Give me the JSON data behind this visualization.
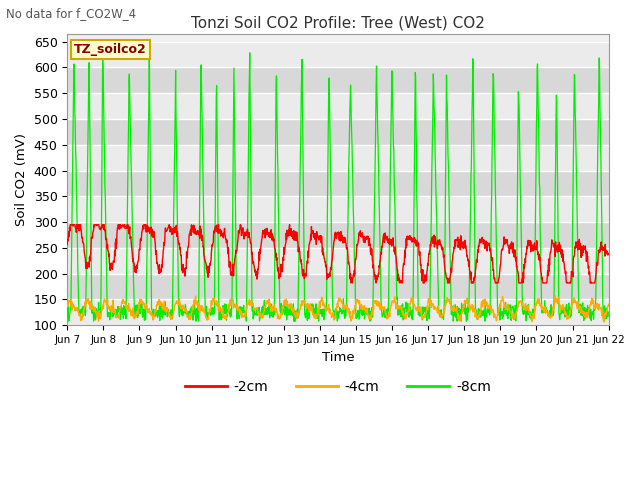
{
  "title": "Tonzi Soil CO2 Profile: Tree (West) CO2",
  "top_left_text": "No data for f_CO2W_4",
  "ylabel": "Soil CO2 (mV)",
  "xlabel": "Time",
  "legend_label": "TZ_soilco2",
  "series_labels": [
    "-2cm",
    "-4cm",
    "-8cm"
  ],
  "series_colors": [
    "#ff0000",
    "#ffaa00",
    "#00ee00"
  ],
  "ylim": [
    100,
    665
  ],
  "yticks": [
    100,
    150,
    200,
    250,
    300,
    350,
    400,
    450,
    500,
    550,
    600,
    650
  ],
  "x_tick_labels": [
    "Jun 7",
    "Jun 8",
    "Jun 9",
    "Jun 10",
    "Jun 11",
    "Jun 12",
    "Jun 13",
    "Jun 14",
    "Jun 15",
    "Jun 16",
    "Jun 17",
    "Jun 18",
    "Jun 19",
    "Jun 20",
    "Jun 21",
    "Jun 22"
  ],
  "background_color": "#ffffff",
  "plot_bg_light": "#f0f0f0",
  "plot_bg_dark": "#e0e0e0",
  "grid_color": "#cccccc",
  "n_days": 15,
  "points_per_day": 96,
  "band_colors": [
    "#ebebeb",
    "#d8d8d8"
  ]
}
